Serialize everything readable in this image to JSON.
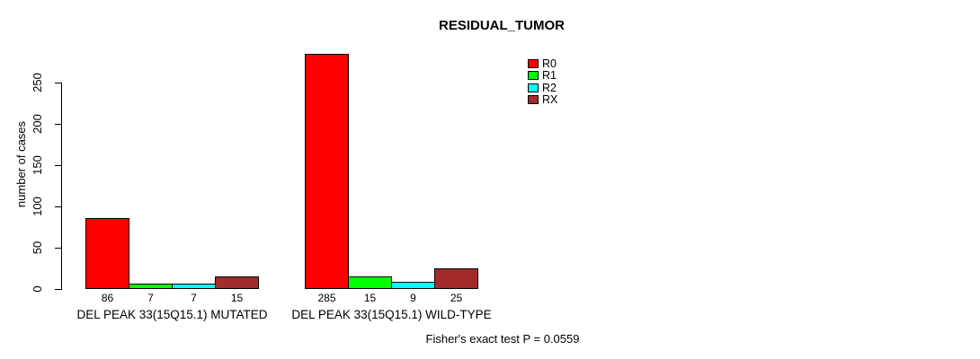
{
  "chart_data": {
    "type": "bar",
    "title": "RESIDUAL_TUMOR",
    "ylabel": "number of cases",
    "xlabel": "",
    "categories": [
      "DEL PEAK 33(15Q15.1) MUTATED",
      "DEL PEAK 33(15Q15.1) WILD-TYPE"
    ],
    "series": [
      {
        "name": "R0",
        "color": "#FF0000",
        "values": [
          86,
          285
        ]
      },
      {
        "name": "R1",
        "color": "#00FF00",
        "values": [
          7,
          15
        ]
      },
      {
        "name": "R2",
        "color": "#00FFFF",
        "values": [
          7,
          9
        ]
      },
      {
        "name": "RX",
        "color": "#A52A2A",
        "values": [
          15,
          25
        ]
      }
    ],
    "yticks": [
      0,
      50,
      100,
      150,
      200,
      250
    ],
    "ylim": [
      0,
      296
    ],
    "grid": false,
    "bar_value_labels_shown": true,
    "legend_position": "top, right of plot center",
    "legend_entries": [
      "R0",
      "R1",
      "R2",
      "RX"
    ],
    "annotation": "Fisher's exact test P = 0.0559"
  }
}
